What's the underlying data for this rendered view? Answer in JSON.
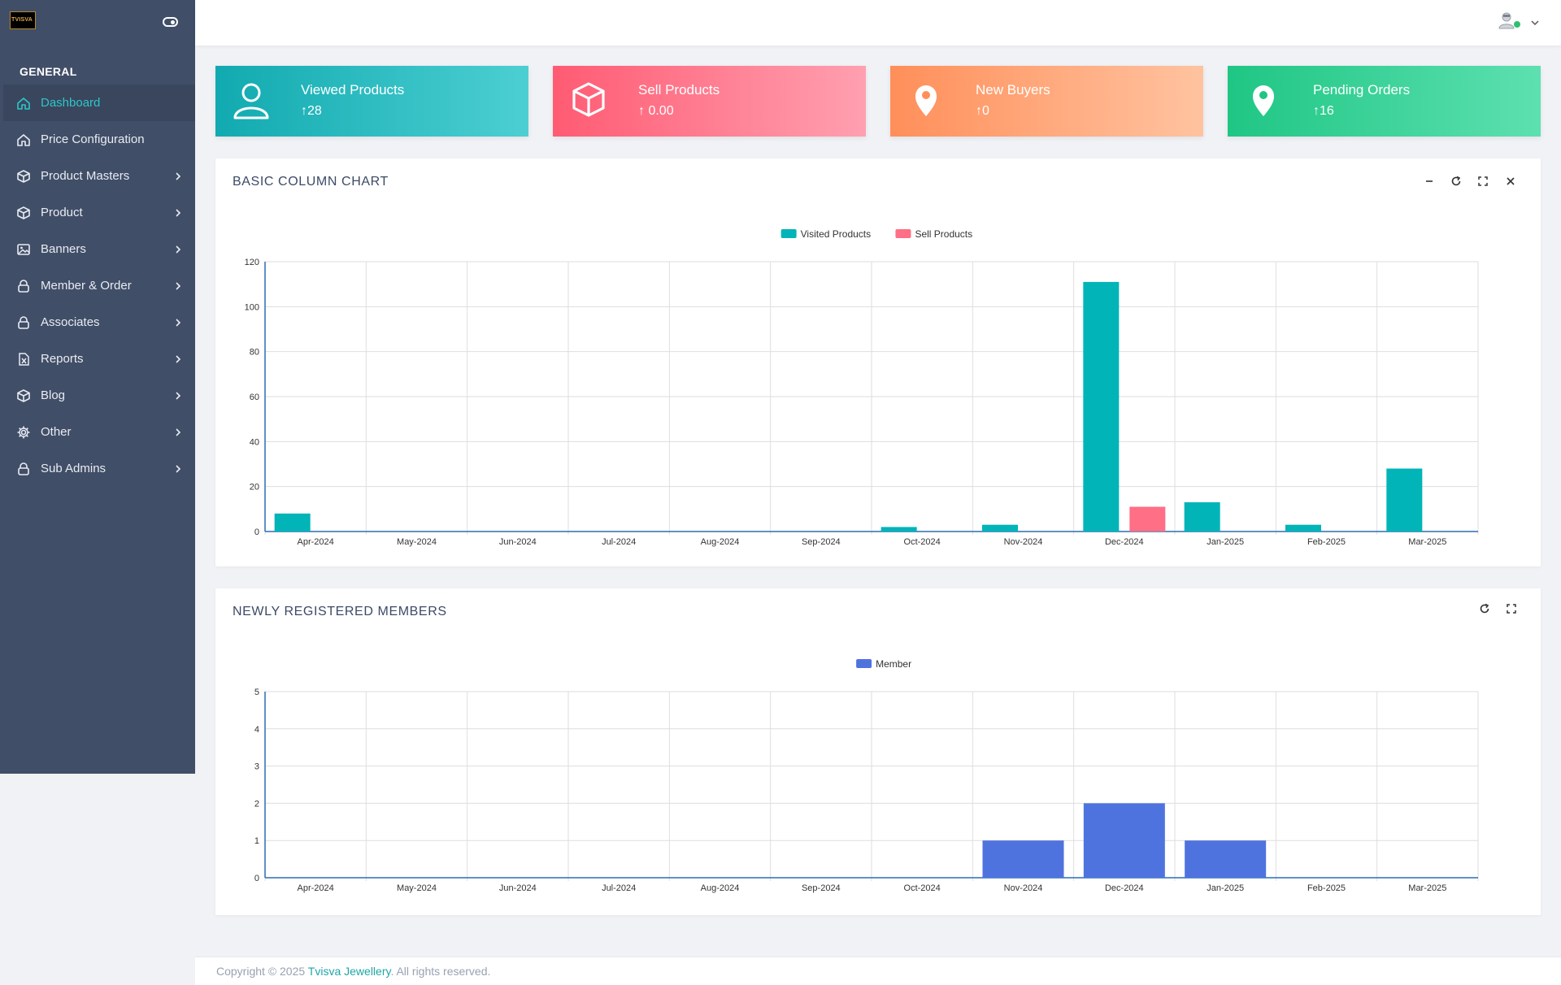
{
  "brand": {
    "logo_text": "TVISVA"
  },
  "sidebar": {
    "heading": "GENERAL",
    "items": [
      {
        "label": "Dashboard",
        "icon": "home-icon",
        "active": true,
        "chevron": false
      },
      {
        "label": "Price Configuration",
        "icon": "home-icon",
        "active": false,
        "chevron": false
      },
      {
        "label": "Product Masters",
        "icon": "box-icon",
        "active": false,
        "chevron": true
      },
      {
        "label": "Product",
        "icon": "box-icon",
        "active": false,
        "chevron": true
      },
      {
        "label": "Banners",
        "icon": "image-icon",
        "active": false,
        "chevron": true
      },
      {
        "label": "Member & Order",
        "icon": "lock-icon",
        "active": false,
        "chevron": true
      },
      {
        "label": "Associates",
        "icon": "lock-icon",
        "active": false,
        "chevron": true
      },
      {
        "label": "Reports",
        "icon": "excel-icon",
        "active": false,
        "chevron": true
      },
      {
        "label": "Blog",
        "icon": "box-icon",
        "active": false,
        "chevron": true
      },
      {
        "label": "Other",
        "icon": "gear-icon",
        "active": false,
        "chevron": true
      },
      {
        "label": "Sub Admins",
        "icon": "lock-icon",
        "active": false,
        "chevron": true
      }
    ]
  },
  "stats": [
    {
      "title": "Viewed Products",
      "value": "↑28",
      "icon": "user-icon",
      "from": "#11aab0",
      "to": "#4ccfd2"
    },
    {
      "title": "Sell Products",
      "value": "↑ 0.00",
      "icon": "box-icon",
      "from": "#ff5b73",
      "to": "#ffa0b0"
    },
    {
      "title": "New Buyers",
      "value": "↑0",
      "icon": "map-pin-icon",
      "from": "#ff8f5a",
      "to": "#ffc3a0"
    },
    {
      "title": "Pending Orders",
      "value": "↑16",
      "icon": "map-pin-icon",
      "from": "#1fc684",
      "to": "#5de0b0"
    }
  ],
  "panels": {
    "column": {
      "title": "BASIC COLUMN CHART"
    },
    "members": {
      "title": "NEWLY REGISTERED MEMBERS"
    }
  },
  "footer": {
    "prefix": "Copyright © 2025 ",
    "brand": "Tvisva Jewellery",
    "suffix": ". All rights reserved."
  },
  "colors": {
    "teal": "#00b4b7",
    "pink": "#ff6f85",
    "blue": "#4f73de",
    "sidebar": "#414e67",
    "active": "#2cc6c9"
  },
  "chart_data": [
    {
      "type": "bar",
      "title": "BASIC COLUMN CHART",
      "categories": [
        "Apr-2024",
        "May-2024",
        "Jun-2024",
        "Jul-2024",
        "Aug-2024",
        "Sep-2024",
        "Oct-2024",
        "Nov-2024",
        "Dec-2024",
        "Jan-2025",
        "Feb-2025",
        "Mar-2025"
      ],
      "series": [
        {
          "name": "Visited Products",
          "color": "#00b4b7",
          "values": [
            8,
            0,
            0,
            0,
            0,
            0,
            2,
            3,
            111,
            13,
            3,
            28
          ]
        },
        {
          "name": "Sell Products",
          "color": "#ff6f85",
          "values": [
            0,
            0,
            0,
            0,
            0,
            0,
            0,
            0,
            11,
            0,
            0,
            0
          ]
        }
      ],
      "yticks": [
        "0",
        "20",
        "40",
        "60",
        "80",
        "100",
        "120"
      ],
      "ylim": [
        0,
        120
      ],
      "legend": "top-center"
    },
    {
      "type": "bar",
      "title": "NEWLY REGISTERED MEMBERS",
      "categories": [
        "Apr-2024",
        "May-2024",
        "Jun-2024",
        "Jul-2024",
        "Aug-2024",
        "Sep-2024",
        "Oct-2024",
        "Nov-2024",
        "Dec-2024",
        "Jan-2025",
        "Feb-2025",
        "Mar-2025"
      ],
      "series": [
        {
          "name": "Member",
          "color": "#4f73de",
          "values": [
            0,
            0,
            0,
            0,
            0,
            0,
            0,
            1,
            2,
            1,
            0,
            0
          ]
        }
      ],
      "yticks": [
        "0",
        "1",
        "2",
        "3",
        "4",
        "5"
      ],
      "ylim": [
        0,
        5
      ],
      "legend": "top-center"
    }
  ]
}
